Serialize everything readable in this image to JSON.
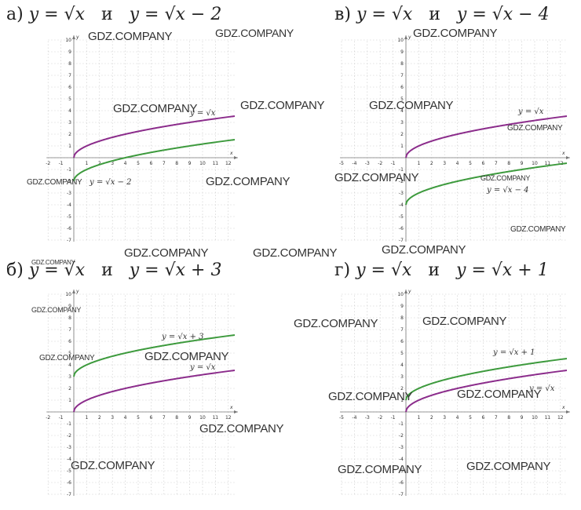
{
  "panels": [
    {
      "id": "a",
      "heading": {
        "letter": "а)",
        "f1": "y = √x",
        "conj": "и",
        "f2": "y = √x − 2"
      }
    },
    {
      "id": "v",
      "heading": {
        "letter": "в)",
        "f1": "y = √x",
        "conj": "и",
        "f2": "y = √x − 4"
      }
    },
    {
      "id": "b",
      "heading": {
        "letter": "б)",
        "f1": "y = √x",
        "conj": "и",
        "f2": "y = √x + 3"
      }
    },
    {
      "id": "g",
      "heading": {
        "letter": "г)",
        "f1": "y = √x",
        "conj": "и",
        "f2": "y = √x + 1"
      }
    }
  ],
  "chart_data": [
    {
      "type": "line",
      "panel": "а)",
      "xlabel": "x",
      "ylabel": "y",
      "xlim": [
        -2,
        12.5
      ],
      "ylim": [
        -7,
        10
      ],
      "x_ticks": [
        -2,
        -1,
        1,
        2,
        3,
        4,
        5,
        6,
        7,
        8,
        9,
        10,
        11,
        12
      ],
      "y_ticks": [
        -7,
        -6,
        -5,
        -4,
        -3,
        -2,
        -1,
        1,
        2,
        3,
        4,
        5,
        6,
        7,
        8,
        9,
        10
      ],
      "series": [
        {
          "name": "y = √x",
          "shift": 0,
          "color": "#8b2c8b"
        },
        {
          "name": "y = √x − 2",
          "shift": -2,
          "color": "#3d9a3d"
        }
      ]
    },
    {
      "type": "line",
      "panel": "в)",
      "xlabel": "x",
      "ylabel": "y",
      "xlim": [
        -5,
        12.5
      ],
      "ylim": [
        -7,
        10
      ],
      "x_ticks": [
        -5,
        -4,
        -3,
        -2,
        -1,
        1,
        2,
        3,
        4,
        5,
        6,
        7,
        8,
        9,
        10,
        11,
        12
      ],
      "y_ticks": [
        -7,
        -6,
        -5,
        -4,
        -3,
        -2,
        -1,
        1,
        2,
        3,
        4,
        5,
        6,
        7,
        8,
        9,
        10
      ],
      "series": [
        {
          "name": "y = √x",
          "shift": 0,
          "color": "#8b2c8b"
        },
        {
          "name": "y = √x − 4",
          "shift": -4,
          "color": "#3d9a3d"
        }
      ]
    },
    {
      "type": "line",
      "panel": "б)",
      "xlabel": "x",
      "ylabel": "y",
      "xlim": [
        -2,
        12.5
      ],
      "ylim": [
        -7,
        10
      ],
      "x_ticks": [
        -2,
        -1,
        1,
        2,
        3,
        4,
        5,
        6,
        7,
        8,
        9,
        10,
        11,
        12
      ],
      "y_ticks": [
        -7,
        -6,
        -5,
        -4,
        -3,
        -2,
        -1,
        1,
        2,
        3,
        4,
        5,
        6,
        7,
        8,
        9,
        10
      ],
      "series": [
        {
          "name": "y = √x",
          "shift": 0,
          "color": "#8b2c8b"
        },
        {
          "name": "y = √x + 3",
          "shift": 3,
          "color": "#3d9a3d"
        }
      ]
    },
    {
      "type": "line",
      "panel": "г)",
      "xlabel": "x",
      "ylabel": "y",
      "xlim": [
        -5,
        12.5
      ],
      "ylim": [
        -7,
        10
      ],
      "x_ticks": [
        -5,
        -4,
        -3,
        -2,
        -1,
        1,
        2,
        3,
        4,
        5,
        6,
        7,
        8,
        9,
        10,
        11,
        12
      ],
      "y_ticks": [
        -7,
        -6,
        -5,
        -4,
        -3,
        -2,
        -1,
        1,
        2,
        3,
        4,
        5,
        6,
        7,
        8,
        9,
        10
      ],
      "series": [
        {
          "name": "y = √x",
          "shift": 0,
          "color": "#8b2c8b"
        },
        {
          "name": "y = √x + 1",
          "shift": 1,
          "color": "#3d9a3d"
        }
      ]
    }
  ],
  "watermarks": [
    "GDZ.COMPANY",
    "GDZ.COMPANY",
    "GDZ.COMPANY",
    "GDZ.COMPANY",
    "GDZ.COMPANY",
    "GDZ.COMPANY",
    "GDZ.COMPANY",
    "GDZ.COMPANY",
    "GDZ.COMPANY",
    "GDZ.COMPANY",
    "GDZ.COMPANY",
    "GDZ.COMPANY",
    "GDZ.COMPANY",
    "GDZ.COMPANY",
    "GDZ.COMPANY",
    "GDZ.COMPANY",
    "GDZ.COMPANY",
    "GDZ.COMPANY",
    "GDZ.COMPANY",
    "GDZ.COMPANY",
    "GDZ.COMPANY",
    "GDZ.COMPANY",
    "GDZ.COMPANY"
  ]
}
